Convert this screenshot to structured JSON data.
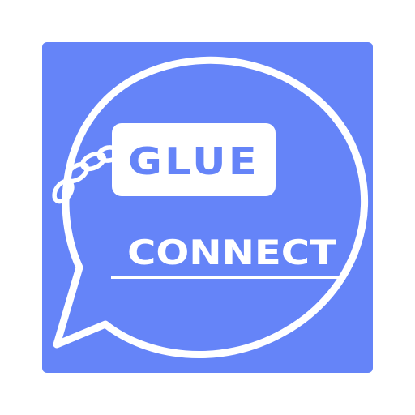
{
  "logo": {
    "primary_word": "GLUE",
    "secondary_word": "CONNECT"
  },
  "colors": {
    "background": "#6584F8",
    "outer": "#FFFFFF",
    "bubble_stroke": "#FFFFFF",
    "badge_fill": "#FFFFFF",
    "badge_text": "#6584F8",
    "secondary_text": "#FFFFFF"
  },
  "icons": {
    "bubble": "speech-bubble-icon",
    "chain": "chain-link-icon"
  }
}
